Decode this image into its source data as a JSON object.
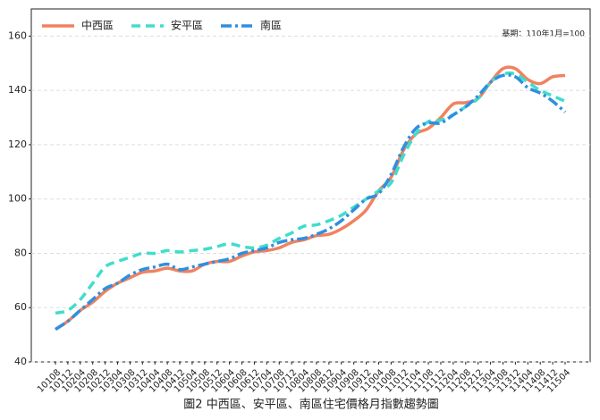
{
  "chart_data": {
    "type": "line",
    "title": "圖2 中西區、安平區、南區住宅價格月指數趨勢圖",
    "annotation": "基期：110年1月=100",
    "categories": [
      "10108",
      "10112",
      "10204",
      "10208",
      "10212",
      "10304",
      "10308",
      "10312",
      "10404",
      "10408",
      "10412",
      "10504",
      "10508",
      "10512",
      "10604",
      "10608",
      "10612",
      "10704",
      "10708",
      "10712",
      "10804",
      "10808",
      "10812",
      "10904",
      "10908",
      "10912",
      "11004",
      "11008",
      "11012",
      "11104",
      "11108",
      "11112",
      "11204",
      "11208",
      "11212",
      "11304",
      "11308",
      "11312",
      "11404",
      "11408",
      "11412",
      "11504"
    ],
    "series": [
      {
        "name": "中西區",
        "color": "#f0825f",
        "linestyle": "solid",
        "values": [
          52,
          55,
          59,
          62,
          66,
          69,
          71,
          73,
          73.5,
          74.5,
          73.5,
          73.5,
          76,
          77,
          77,
          79,
          80.5,
          81,
          82,
          84,
          85,
          86.5,
          87,
          89,
          92,
          96,
          103,
          108,
          118,
          124,
          126,
          130,
          135,
          135.5,
          137,
          143,
          148,
          148,
          144,
          142.5,
          145,
          145.5
        ]
      },
      {
        "name": "安平區",
        "color": "#40ddcc",
        "linestyle": "dashed",
        "values": [
          58,
          59,
          63,
          69,
          75,
          77,
          78.5,
          80,
          80,
          81,
          80.5,
          81,
          81.5,
          82.5,
          83.5,
          82.5,
          82,
          83,
          85.5,
          87.5,
          90,
          90.5,
          92,
          94,
          97,
          100,
          103,
          106,
          116,
          124,
          128.5,
          129,
          131,
          134,
          137,
          143,
          146,
          146,
          143,
          140,
          138,
          136
        ]
      },
      {
        "name": "南區",
        "color": "#2f8fe0",
        "linestyle": "dashdot",
        "values": [
          52,
          55,
          59,
          63,
          67,
          69,
          72,
          74,
          75,
          76,
          74,
          75,
          76,
          77,
          78,
          80,
          81,
          82,
          84,
          85,
          85.5,
          87,
          89,
          92,
          96,
          100,
          102,
          109,
          119,
          126,
          128,
          128,
          131,
          134,
          138,
          143,
          145.5,
          145,
          141,
          139,
          136,
          132
        ]
      }
    ],
    "ylim": [
      40,
      170
    ],
    "yticks": [
      40,
      60,
      80,
      100,
      120,
      140,
      160
    ],
    "grid": true,
    "legend": "top-left"
  }
}
